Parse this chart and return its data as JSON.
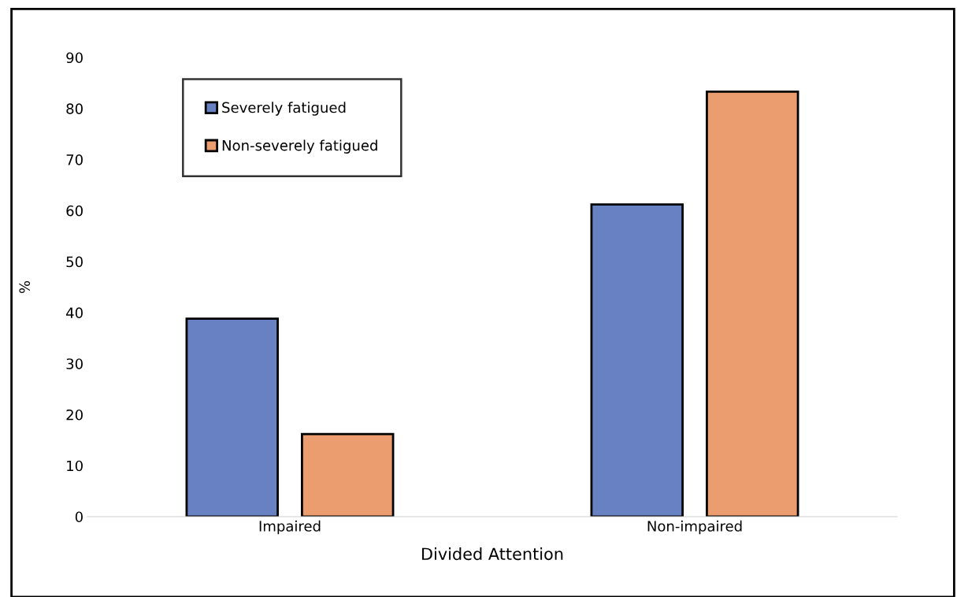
{
  "chart_data": {
    "type": "bar",
    "xlabel": "Divided Attention",
    "ylabel": "%",
    "categories": [
      "Impaired",
      "Non-impaired"
    ],
    "series": [
      {
        "name": "Severely fatigued",
        "color": "#6881c3",
        "values": [
          38.8,
          61.2
        ]
      },
      {
        "name": "Non-severely fatigued",
        "color": "#eb9d70",
        "values": [
          16.2,
          83.3
        ]
      }
    ],
    "ylim": [
      0,
      90
    ],
    "yticks": [
      0,
      10,
      20,
      30,
      40,
      50,
      60,
      70,
      80,
      90
    ],
    "grid": false,
    "legend": "top left"
  }
}
